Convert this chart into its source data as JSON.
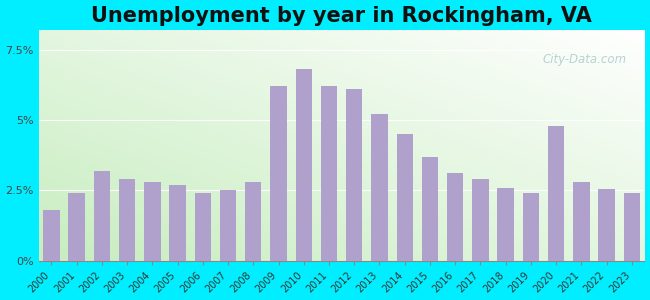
{
  "title": "Unemployment by year in Rockingham, VA",
  "years": [
    2000,
    2001,
    2002,
    2003,
    2004,
    2005,
    2006,
    2007,
    2008,
    2009,
    2010,
    2011,
    2012,
    2013,
    2014,
    2015,
    2016,
    2017,
    2018,
    2019,
    2020,
    2021,
    2022,
    2023
  ],
  "values": [
    1.8,
    2.4,
    3.2,
    2.9,
    2.8,
    2.7,
    2.4,
    2.5,
    2.8,
    6.2,
    6.8,
    6.2,
    6.1,
    5.2,
    4.5,
    3.7,
    3.1,
    2.9,
    2.6,
    2.4,
    4.8,
    2.8,
    2.55,
    2.4
  ],
  "bar_color": "#b0a0cc",
  "background_color_fig": "#00eeff",
  "yticks": [
    0.0,
    2.5,
    5.0,
    7.5
  ],
  "ytick_labels": [
    "0%",
    "2.5%",
    "5%",
    "7.5%"
  ],
  "ylim": [
    0,
    8.2
  ],
  "title_fontsize": 15,
  "watermark_text": "City-Data.com",
  "grid_color": "#cccccc"
}
